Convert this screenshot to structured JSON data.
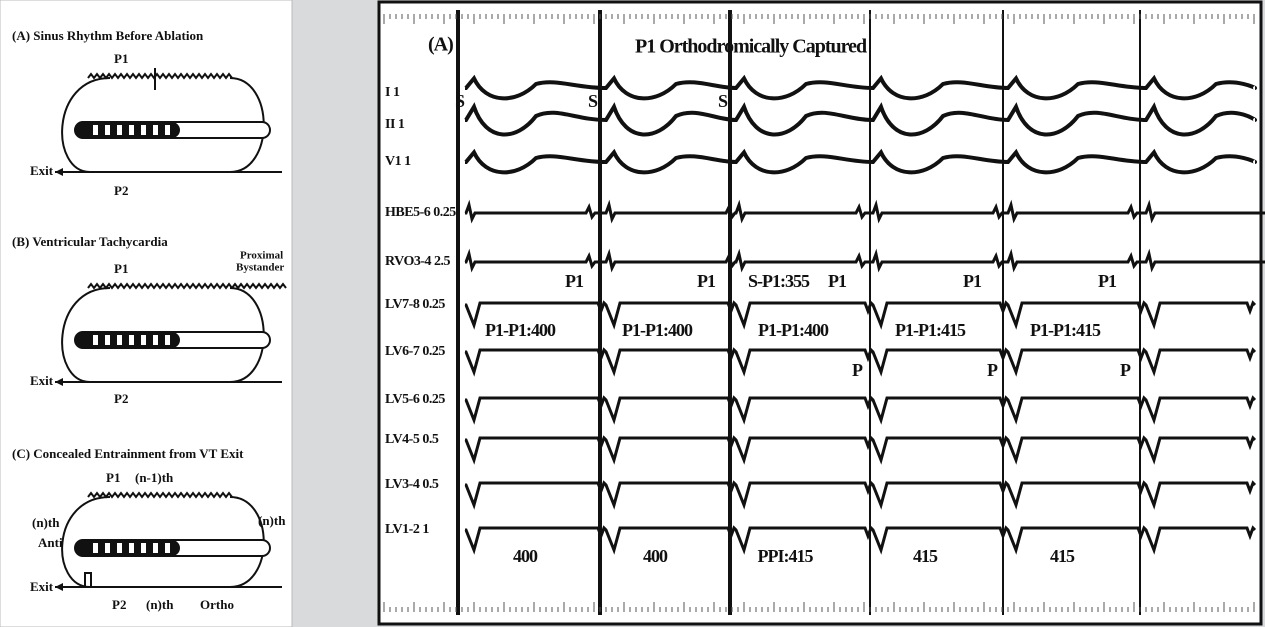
{
  "left": {
    "diagrams": [
      {
        "title": "(A) Sinus Rhythm Before Ablation",
        "p1": "P1",
        "exit": "Exit",
        "p2": "P2"
      },
      {
        "title": "(B) Ventricular Tachycardia",
        "bystander": [
          "Proximal",
          "Bystander"
        ],
        "p1": "P1",
        "exit": "Exit",
        "p2": "P2"
      },
      {
        "title": "(C) Concealed Entrainment from VT Exit",
        "p1": "P1",
        "p1_beat": "(n-1)th",
        "anti_beat": "(n)th",
        "anti": "Anti",
        "ortho_beat": "(n)th",
        "exit": "Exit",
        "p2": "P2",
        "p2_beat": "(n)th",
        "ortho": "Ortho"
      }
    ]
  },
  "right": {
    "panel_label": "(A)",
    "title": "P1 Orthodromically Captured",
    "leads": [
      "I 1",
      "II 1",
      "V1 1",
      "HBE5-6 0.25",
      "RVO3-4 2.5",
      "LV7-8 0.25",
      "LV6-7 0.25",
      "LV5-6 0.25",
      "LV4-5 0.5",
      "LV3-4 0.5",
      "LV1-2 1"
    ],
    "stimulus_labels": [
      "S",
      "S",
      "S"
    ],
    "p1_markers": [
      "P1",
      "P1",
      "P1",
      "P1",
      "P1"
    ],
    "s_p1": "S-P1:355",
    "p1_intervals": [
      "P1-P1:400",
      "P1-P1:400",
      "P1-P1:400",
      "P1-P1:415",
      "P1-P1:415"
    ],
    "p_markers": [
      "P",
      "P",
      "P"
    ],
    "intervals": [
      "400",
      "400",
      "PPI:415",
      "415",
      "415"
    ]
  }
}
